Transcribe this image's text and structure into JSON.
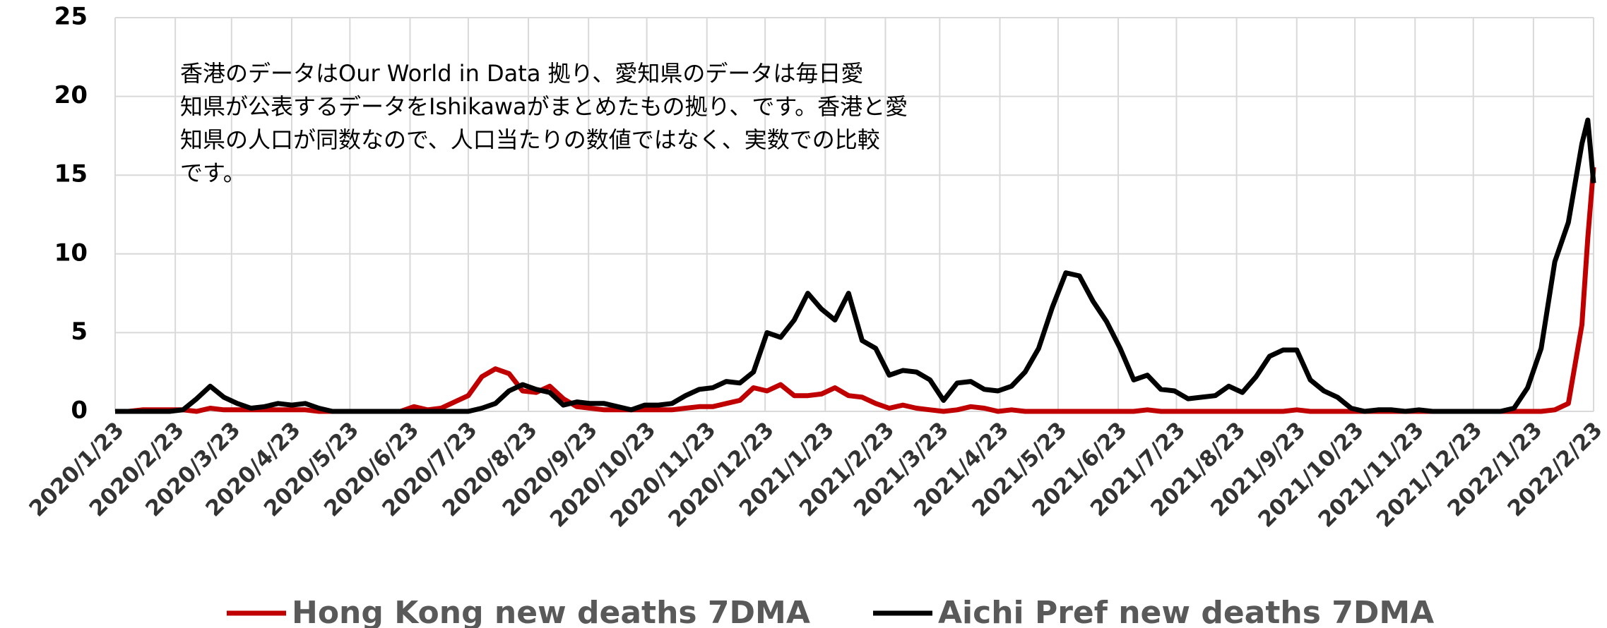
{
  "chart_data": {
    "type": "line",
    "annotation": [
      "香港のデータはOur World in Data 拠り、愛知県のデータは毎日愛",
      "知県が公表するデータをIshikawaがまとめたもの拠り、です。香港と愛",
      "知県の人口が同数なので、人口当たりの数値ではなく、実数での比較",
      "です。"
    ],
    "x": [
      "2020/1/23",
      "2020/1/30",
      "2020/2/6",
      "2020/2/13",
      "2020/2/20",
      "2020/2/27",
      "2020/3/5",
      "2020/3/12",
      "2020/3/19",
      "2020/3/26",
      "2020/4/2",
      "2020/4/9",
      "2020/4/16",
      "2020/4/23",
      "2020/4/30",
      "2020/5/7",
      "2020/5/14",
      "2020/5/21",
      "2020/5/28",
      "2020/6/4",
      "2020/6/11",
      "2020/6/18",
      "2020/6/25",
      "2020/7/2",
      "2020/7/9",
      "2020/7/16",
      "2020/7/23",
      "2020/7/30",
      "2020/8/6",
      "2020/8/13",
      "2020/8/20",
      "2020/8/27",
      "2020/9/3",
      "2020/9/10",
      "2020/9/17",
      "2020/9/24",
      "2020/10/1",
      "2020/10/8",
      "2020/10/15",
      "2020/10/22",
      "2020/10/29",
      "2020/11/5",
      "2020/11/12",
      "2020/11/19",
      "2020/11/26",
      "2020/12/3",
      "2020/12/10",
      "2020/12/17",
      "2020/12/24",
      "2020/12/31",
      "2021/1/7",
      "2021/1/14",
      "2021/1/21",
      "2021/1/28",
      "2021/2/4",
      "2021/2/11",
      "2021/2/18",
      "2021/2/25",
      "2021/3/4",
      "2021/3/11",
      "2021/3/18",
      "2021/3/25",
      "2021/4/1",
      "2021/4/8",
      "2021/4/15",
      "2021/4/22",
      "2021/4/29",
      "2021/5/6",
      "2021/5/13",
      "2021/5/20",
      "2021/5/27",
      "2021/6/3",
      "2021/6/10",
      "2021/6/17",
      "2021/6/24",
      "2021/7/1",
      "2021/7/8",
      "2021/7/15",
      "2021/7/22",
      "2021/7/29",
      "2021/8/5",
      "2021/8/12",
      "2021/8/19",
      "2021/8/26",
      "2021/9/2",
      "2021/9/9",
      "2021/9/16",
      "2021/9/23",
      "2021/9/30",
      "2021/10/7",
      "2021/10/14",
      "2021/10/21",
      "2021/10/28",
      "2021/11/4",
      "2021/11/11",
      "2021/11/18",
      "2021/11/25",
      "2021/12/2",
      "2021/12/9",
      "2021/12/16",
      "2021/12/23",
      "2021/12/30",
      "2022/1/6",
      "2022/1/13",
      "2022/1/20",
      "2022/1/27",
      "2022/2/3",
      "2022/2/10",
      "2022/2/17",
      "2022/2/20",
      "2022/2/23"
    ],
    "series": [
      {
        "name": "Hong Kong new deaths 7DMA",
        "color": "#c00000",
        "values": [
          0,
          0,
          0.1,
          0.1,
          0.1,
          0.1,
          0,
          0.2,
          0.1,
          0.1,
          0.1,
          0.1,
          0.1,
          0.1,
          0.1,
          0,
          0,
          0,
          0,
          0,
          0,
          0,
          0.3,
          0.1,
          0.2,
          0.6,
          1.0,
          2.2,
          2.7,
          2.4,
          1.3,
          1.2,
          1.6,
          0.8,
          0.3,
          0.2,
          0.1,
          0.1,
          0.1,
          0.1,
          0.1,
          0.1,
          0.2,
          0.3,
          0.3,
          0.5,
          0.7,
          1.5,
          1.3,
          1.7,
          1.0,
          1.0,
          1.1,
          1.5,
          1.0,
          0.9,
          0.5,
          0.2,
          0.4,
          0.2,
          0.1,
          0,
          0.1,
          0.3,
          0.2,
          0,
          0.1,
          0,
          0,
          0,
          0,
          0,
          0,
          0,
          0,
          0,
          0.1,
          0,
          0,
          0,
          0,
          0,
          0,
          0,
          0,
          0,
          0,
          0.1,
          0,
          0,
          0,
          0,
          0,
          0,
          0,
          0,
          0,
          0,
          0,
          0,
          0,
          0,
          0,
          0,
          0,
          0,
          0.1,
          0.5,
          5.5,
          11,
          15.5
        ]
      },
      {
        "name": "Aichi Pref new deaths 7DMA",
        "color": "#000000",
        "values": [
          0,
          0,
          0,
          0,
          0,
          0.1,
          0.8,
          1.6,
          0.9,
          0.5,
          0.2,
          0.3,
          0.5,
          0.4,
          0.5,
          0.2,
          0,
          0,
          0,
          0,
          0,
          0,
          0,
          0,
          0,
          0,
          0,
          0.2,
          0.5,
          1.3,
          1.7,
          1.4,
          1.2,
          0.4,
          0.6,
          0.5,
          0.5,
          0.3,
          0.1,
          0.4,
          0.4,
          0.5,
          1.0,
          1.4,
          1.5,
          1.9,
          1.8,
          2.5,
          5.0,
          4.7,
          5.8,
          7.5,
          6.5,
          5.8,
          7.5,
          4.5,
          4.0,
          2.3,
          2.6,
          2.5,
          2.0,
          0.7,
          1.8,
          1.9,
          1.4,
          1.3,
          1.6,
          2.5,
          4.0,
          6.6,
          8.8,
          8.6,
          7.0,
          5.7,
          4.0,
          2.0,
          2.3,
          1.4,
          1.3,
          0.8,
          0.9,
          1.0,
          1.6,
          1.2,
          2.2,
          3.5,
          3.9,
          3.9,
          2.0,
          1.3,
          0.9,
          0.2,
          0,
          0.1,
          0.1,
          0,
          0.1,
          0,
          0,
          0,
          0,
          0,
          0,
          0.2,
          1.5,
          4.0,
          9.5,
          12,
          17,
          18.5,
          14.5
        ]
      }
    ],
    "xlim": [
      "2020/1/23",
      "2022/2/23"
    ],
    "xticks": [
      "2020/1/23",
      "2020/2/23",
      "2020/3/23",
      "2020/4/23",
      "2020/5/23",
      "2020/6/23",
      "2020/7/23",
      "2020/8/23",
      "2020/9/23",
      "2020/10/23",
      "2020/11/23",
      "2020/12/23",
      "2021/1/23",
      "2021/2/23",
      "2021/3/23",
      "2021/4/23",
      "2021/5/23",
      "2021/6/23",
      "2021/7/23",
      "2021/8/23",
      "2021/9/23",
      "2021/10/23",
      "2021/11/23",
      "2021/12/23",
      "2022/1/23",
      "2022/2/23"
    ],
    "ylim": [
      0,
      25
    ],
    "yticks": [
      0,
      5,
      10,
      15,
      20,
      25
    ],
    "grid": true,
    "legend": "bottom"
  }
}
